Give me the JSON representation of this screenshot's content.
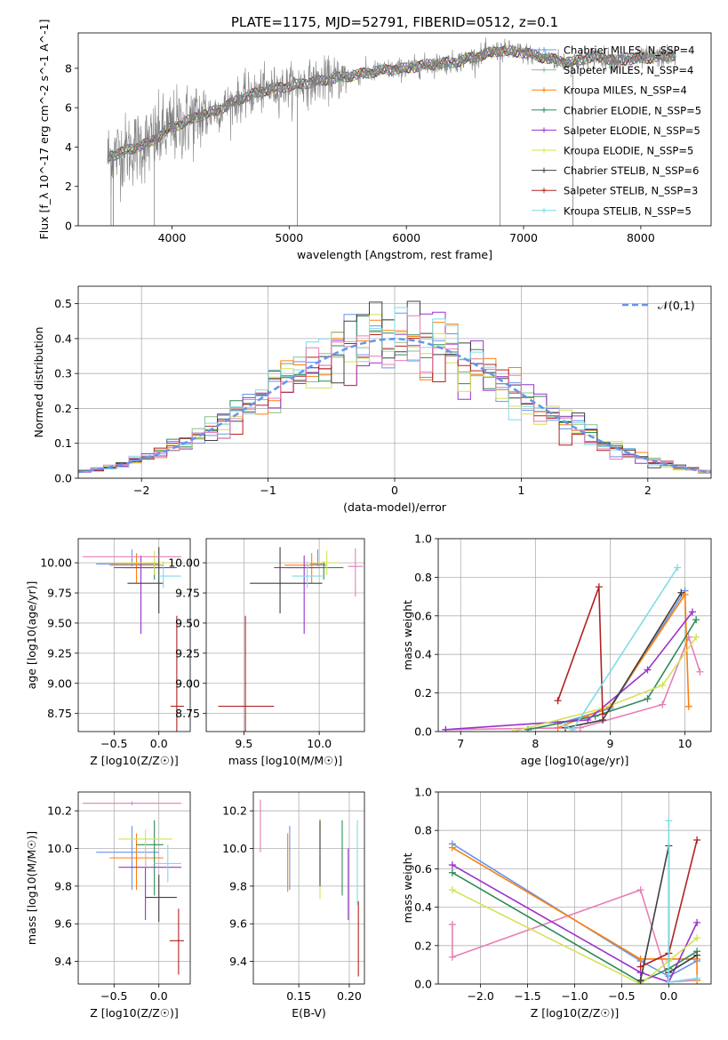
{
  "figure_title": "PLATE=1175, MJD=52791, FIBERID=0512, z=0.1",
  "colors": {
    "Chabrier MILES": "#6495ed",
    "Salpeter MILES": "#8fbc8f",
    "Kroupa MILES": "#ff7f0e",
    "Chabrier ELODIE": "#2e8b57",
    "Salpeter ELODIE": "#9932cc",
    "Kroupa ELODIE": "#d4e157",
    "Chabrier STELIB": "#404040",
    "Salpeter STELIB": "#b22222",
    "Kroupa STELIB": "#7fdbe6",
    "pink": "#e67fb5",
    "spectrum": "#808080",
    "normal": "#6495ed"
  },
  "chart_data": [
    {
      "id": "spectrum",
      "type": "line",
      "title": "PLATE=1175, MJD=52791, FIBERID=0512, z=0.1",
      "xlabel": "wavelength [Angstrom, rest frame]",
      "ylabel": "Flux [f_λ 10^-17 erg cm^-2 s^-1 A^-1]",
      "xlim": [
        3200,
        8600
      ],
      "ylim": [
        0,
        9.8
      ],
      "xticks": [
        4000,
        5000,
        6000,
        7000,
        8000
      ],
      "yticks": [
        0,
        2,
        4,
        6,
        8
      ],
      "grid": false,
      "legend_position": "upper right",
      "legend": [
        {
          "label": "Chabrier MILES, N_SSP=4",
          "color": "#6495ed"
        },
        {
          "label": "Salpeter MILES, N_SSP=4",
          "color": "#8fbc8f"
        },
        {
          "label": "Kroupa MILES, N_SSP=4",
          "color": "#ff7f0e"
        },
        {
          "label": "Chabrier ELODIE, N_SSP=5",
          "color": "#2e8b57"
        },
        {
          "label": "Salpeter ELODIE, N_SSP=5",
          "color": "#9932cc"
        },
        {
          "label": "Kroupa ELODIE, N_SSP=5",
          "color": "#d4e157"
        },
        {
          "label": "Chabrier STELIB, N_SSP=6",
          "color": "#404040"
        },
        {
          "label": "Salpeter STELIB, N_SSP=3",
          "color": "#b22222"
        },
        {
          "label": "Kroupa STELIB, N_SSP=5",
          "color": "#7fdbe6"
        }
      ],
      "continuum": [
        [
          3450,
          3.5
        ],
        [
          3600,
          3.8
        ],
        [
          3800,
          4.2
        ],
        [
          4000,
          5.0
        ],
        [
          4200,
          5.5
        ],
        [
          4400,
          5.9
        ],
        [
          4600,
          6.5
        ],
        [
          4800,
          6.9
        ],
        [
          5000,
          7.1
        ],
        [
          5200,
          7.3
        ],
        [
          5400,
          7.5
        ],
        [
          5600,
          7.7
        ],
        [
          5800,
          7.9
        ],
        [
          6000,
          8.0
        ],
        [
          6200,
          8.2
        ],
        [
          6400,
          8.3
        ],
        [
          6600,
          8.6
        ],
        [
          6800,
          8.9
        ],
        [
          7000,
          8.8
        ],
        [
          7200,
          8.5
        ],
        [
          7400,
          8.3
        ],
        [
          7600,
          8.6
        ],
        [
          7800,
          8.4
        ],
        [
          8000,
          8.5
        ],
        [
          8200,
          8.6
        ],
        [
          8300,
          8.7
        ]
      ],
      "spikes": [
        3480,
        3500,
        3850,
        5070,
        6800,
        7420
      ]
    },
    {
      "id": "residuals",
      "type": "bar",
      "xlabel": "(data-model)/error",
      "ylabel": "Normed distribution",
      "xlim": [
        -2.5,
        2.5
      ],
      "ylim": [
        0,
        0.55
      ],
      "xticks": [
        -2,
        -1,
        0,
        1,
        2
      ],
      "yticks": [
        0.0,
        0.1,
        0.2,
        0.3,
        0.4,
        0.5
      ],
      "grid": true,
      "bin_width": 0.1,
      "legend": [
        {
          "label": "𝒩(0,1)",
          "color": "#6495ed"
        }
      ],
      "legend_position": "upper right"
    },
    {
      "id": "age-vs-Z",
      "type": "scatter",
      "xlabel": "Z [log10(Z/Z☉)]",
      "ylabel": "age  [log10(age/yr)]",
      "xlim": [
        -0.9,
        0.35
      ],
      "ylim": [
        8.6,
        10.2
      ],
      "xticks": [
        -0.5,
        0.0
      ],
      "yticks": [
        8.75,
        9.0,
        9.25,
        9.5,
        9.75,
        10.0
      ],
      "grid": true,
      "points": [
        {
          "color": "#6495ed",
          "x": -0.3,
          "xerr": [
            0.4,
            0.3
          ],
          "y": 9.99,
          "yerr": [
            0.02,
            0.12
          ]
        },
        {
          "color": "#ff7f0e",
          "x": -0.25,
          "xerr": [
            0.3,
            0.3
          ],
          "y": 9.98,
          "yerr": [
            0.15,
            0.1
          ]
        },
        {
          "color": "#2e8b57",
          "x": -0.05,
          "xerr": [
            0.35,
            0.1
          ],
          "y": 9.96,
          "yerr": [
            0.1,
            0.05
          ]
        },
        {
          "color": "#9932cc",
          "x": -0.2,
          "xerr": [
            0.3,
            0.4
          ],
          "y": 9.96,
          "yerr": [
            0.55,
            0.1
          ]
        },
        {
          "color": "#d4e157",
          "x": -0.05,
          "xerr": [
            0.4,
            0.2
          ],
          "y": 10.0,
          "yerr": [
            0.1,
            0.1
          ]
        },
        {
          "color": "#404040",
          "x": 0.0,
          "xerr": [
            0.35,
            0.05
          ],
          "y": 9.83,
          "yerr": [
            0.25,
            0.3
          ]
        },
        {
          "color": "#b22222",
          "x": 0.2,
          "xerr": [
            0.07,
            0.08
          ],
          "y": 8.81,
          "yerr": [
            0.22,
            0.75
          ]
        },
        {
          "color": "#7fdbe6",
          "x": 0.05,
          "xerr": [
            0.05,
            0.2
          ],
          "y": 9.89,
          "yerr": [
            0.1,
            0.12
          ]
        },
        {
          "color": "#e67fb5",
          "x": -0.3,
          "xerr": [
            0.55,
            0.55
          ],
          "y": 10.05,
          "yerr": [
            0.01,
            0.01
          ]
        }
      ]
    },
    {
      "id": "age-vs-mass",
      "type": "scatter",
      "xlabel": "mass [log10(M/M☉)]",
      "ylabel": "",
      "xlim": [
        9.25,
        10.3
      ],
      "ylim": [
        8.6,
        10.2
      ],
      "xticks": [
        9.5,
        10.0
      ],
      "yticks": [
        8.75,
        9.0,
        9.25,
        9.5,
        9.75,
        10.0
      ],
      "grid": true,
      "points": [
        {
          "color": "#6495ed",
          "x": 9.99,
          "xerr": [
            0.05,
            0.05
          ],
          "y": 9.99,
          "yerr": [
            0.02,
            0.12
          ]
        },
        {
          "color": "#ff7f0e",
          "x": 9.95,
          "xerr": [
            0.18,
            0.1
          ],
          "y": 9.98,
          "yerr": [
            0.15,
            0.1
          ]
        },
        {
          "color": "#2e8b57",
          "x": 10.03,
          "xerr": [
            0.25,
            0.13
          ],
          "y": 9.96,
          "yerr": [
            0.1,
            0.05
          ]
        },
        {
          "color": "#9932cc",
          "x": 9.9,
          "xerr": [
            0.2,
            0.1
          ],
          "y": 9.96,
          "yerr": [
            0.55,
            0.1
          ]
        },
        {
          "color": "#d4e157",
          "x": 10.05,
          "xerr": [
            0.1,
            0.08
          ],
          "y": 10.0,
          "yerr": [
            0.1,
            0.1
          ]
        },
        {
          "color": "#404040",
          "x": 9.74,
          "xerr": [
            0.2,
            0.28
          ],
          "y": 9.83,
          "yerr": [
            0.25,
            0.3
          ]
        },
        {
          "color": "#b22222",
          "x": 9.51,
          "xerr": [
            0.18,
            0.19
          ],
          "y": 8.81,
          "yerr": [
            0.22,
            0.75
          ]
        },
        {
          "color": "#7fdbe6",
          "x": 9.92,
          "xerr": [
            0.1,
            0.1
          ],
          "y": 9.89,
          "yerr": [
            0.1,
            0.12
          ]
        },
        {
          "color": "#e67fb5",
          "x": 10.24,
          "xerr": [
            0.05,
            0.05
          ],
          "y": 9.97,
          "yerr": [
            0.25,
            0.15
          ]
        }
      ]
    },
    {
      "id": "weight-vs-age",
      "type": "line",
      "xlabel": "age  [log10(age/yr)]",
      "ylabel": "mass weight",
      "xlim": [
        6.7,
        10.35
      ],
      "ylim": [
        0,
        1.0
      ],
      "xticks": [
        7,
        8,
        9,
        10
      ],
      "yticks": [
        0.0,
        0.2,
        0.4,
        0.6,
        0.8,
        1.0
      ],
      "grid": true,
      "series": [
        {
          "color": "#e67fb5",
          "x": [
            6.8,
            8.6,
            9.7,
            10.05,
            10.2
          ],
          "y": [
            0.01,
            0.02,
            0.14,
            0.49,
            0.31
          ]
        },
        {
          "color": "#6495ed",
          "x": [
            8.3,
            9.0,
            10.0
          ],
          "y": [
            0.04,
            0.12,
            0.73
          ]
        },
        {
          "color": "#ff7f0e",
          "x": [
            8.3,
            9.0,
            10.0,
            10.05
          ],
          "y": [
            0.02,
            0.13,
            0.71,
            0.13
          ]
        },
        {
          "color": "#2e8b57",
          "x": [
            7.9,
            8.8,
            9.5,
            10.15
          ],
          "y": [
            0.01,
            0.08,
            0.17,
            0.58
          ]
        },
        {
          "color": "#9932cc",
          "x": [
            6.8,
            8.7,
            9.5,
            10.1
          ],
          "y": [
            0.01,
            0.06,
            0.32,
            0.62
          ]
        },
        {
          "color": "#d4e157",
          "x": [
            7.7,
            8.9,
            9.7,
            10.15
          ],
          "y": [
            0.0,
            0.12,
            0.24,
            0.49
          ]
        },
        {
          "color": "#404040",
          "x": [
            8.4,
            8.9,
            9.95
          ],
          "y": [
            0.02,
            0.06,
            0.72
          ]
        },
        {
          "color": "#b22222",
          "x": [
            8.3,
            8.85,
            8.9
          ],
          "y": [
            0.16,
            0.75,
            0.09
          ]
        },
        {
          "color": "#7fdbe6",
          "x": [
            8.4,
            8.5,
            9.9
          ],
          "y": [
            0.03,
            0.01,
            0.85
          ]
        }
      ]
    },
    {
      "id": "mass-vs-Z",
      "type": "scatter",
      "xlabel": "Z [log10(Z/Z☉)]",
      "ylabel": "mass [log10(M/M☉)]",
      "xlim": [
        -0.9,
        0.35
      ],
      "ylim": [
        9.28,
        10.3
      ],
      "xticks": [
        -0.5,
        0.0
      ],
      "yticks": [
        9.4,
        9.6,
        9.8,
        10.0,
        10.2
      ],
      "grid": true,
      "points": [
        {
          "color": "#6495ed",
          "x": -0.3,
          "xerr": [
            0.4,
            0.3
          ],
          "y": 9.98,
          "yerr": [
            0.2,
            0.14
          ]
        },
        {
          "color": "#ff7f0e",
          "x": -0.25,
          "xerr": [
            0.3,
            0.3
          ],
          "y": 9.95,
          "yerr": [
            0.17,
            0.13
          ]
        },
        {
          "color": "#2e8b57",
          "x": -0.05,
          "xerr": [
            0.2,
            0.1
          ],
          "y": 10.02,
          "yerr": [
            0.27,
            0.13
          ]
        },
        {
          "color": "#9932cc",
          "x": -0.15,
          "xerr": [
            0.3,
            0.4
          ],
          "y": 9.9,
          "yerr": [
            0.28,
            0.1
          ]
        },
        {
          "color": "#d4e157",
          "x": -0.15,
          "xerr": [
            0.3,
            0.3
          ],
          "y": 10.05,
          "yerr": [
            0.15,
            0.05
          ]
        },
        {
          "color": "#404040",
          "x": 0.0,
          "xerr": [
            0.15,
            0.2
          ],
          "y": 9.74,
          "yerr": [
            0.13,
            0.12
          ]
        },
        {
          "color": "#b22222",
          "x": 0.22,
          "xerr": [
            0.1,
            0.06
          ],
          "y": 9.51,
          "yerr": [
            0.18,
            0.17
          ]
        },
        {
          "color": "#7fdbe6",
          "x": 0.1,
          "xerr": [
            0.15,
            0.15
          ],
          "y": 9.92,
          "yerr": [
            0.1,
            0.1
          ]
        },
        {
          "color": "#e67fb5",
          "x": -0.3,
          "xerr": [
            0.55,
            0.55
          ],
          "y": 10.24,
          "yerr": [
            0.01,
            0.01
          ]
        }
      ]
    },
    {
      "id": "mass-vs-EBV",
      "type": "scatter",
      "xlabel": "E(B-V)",
      "ylabel": "",
      "xlim": [
        0.105,
        0.215
      ],
      "ylim": [
        9.28,
        10.3
      ],
      "xticks": [
        0.15,
        0.2
      ],
      "yticks": [
        9.4,
        9.6,
        9.8,
        10.0,
        10.2
      ],
      "grid": true,
      "points": [
        {
          "color": "#6495ed",
          "x": 0.141,
          "y": 9.98,
          "yerr": [
            0.2,
            0.14
          ]
        },
        {
          "color": "#ff7f0e",
          "x": 0.139,
          "y": 9.95,
          "yerr": [
            0.18,
            0.13
          ]
        },
        {
          "color": "#2e8b57",
          "x": 0.193,
          "y": 10.02,
          "yerr": [
            0.27,
            0.13
          ]
        },
        {
          "color": "#9932cc",
          "x": 0.199,
          "y": 9.9,
          "yerr": [
            0.28,
            0.1
          ]
        },
        {
          "color": "#d4e157",
          "x": 0.171,
          "y": 10.0,
          "yerr": [
            0.27,
            0.16
          ]
        },
        {
          "color": "#404040",
          "x": 0.171,
          "y": 10.0,
          "yerr": [
            0.2,
            0.15
          ]
        },
        {
          "color": "#b22222",
          "x": 0.209,
          "y": 9.52,
          "yerr": [
            0.2,
            0.2
          ]
        },
        {
          "color": "#7fdbe6",
          "x": 0.208,
          "y": 9.9,
          "yerr": [
            0.2,
            0.25
          ]
        },
        {
          "color": "#e67fb5",
          "x": 0.112,
          "y": 10.12,
          "yerr": [
            0.14,
            0.14
          ]
        }
      ]
    },
    {
      "id": "weight-vs-Z",
      "type": "line",
      "xlabel": "Z [log10(Z/Z☉)]",
      "ylabel": "mass weight",
      "xlim": [
        -2.45,
        0.45
      ],
      "ylim": [
        0,
        1.0
      ],
      "xticks": [
        -2.0,
        -1.5,
        -1.0,
        -0.5,
        0.0
      ],
      "yticks": [
        0.0,
        0.2,
        0.4,
        0.6,
        0.8,
        1.0
      ],
      "grid": true,
      "series": [
        {
          "color": "#e67fb5",
          "x": [
            -2.3,
            -2.3,
            -0.3,
            0.0,
            0.3
          ],
          "y": [
            0.31,
            0.14,
            0.49,
            0.01,
            0.02
          ]
        },
        {
          "color": "#6495ed",
          "x": [
            -2.3,
            -0.3,
            0.0,
            0.3
          ],
          "y": [
            0.73,
            0.12,
            0.04,
            0.12
          ]
        },
        {
          "color": "#ff7f0e",
          "x": [
            -2.3,
            -0.3,
            0.3,
            0.3
          ],
          "y": [
            0.71,
            0.13,
            0.13,
            0.02
          ]
        },
        {
          "color": "#2e8b57",
          "x": [
            -2.3,
            -0.3,
            0.0,
            0.3
          ],
          "y": [
            0.58,
            0.01,
            0.08,
            0.17
          ]
        },
        {
          "color": "#9932cc",
          "x": [
            -2.3,
            -0.3,
            0.0,
            0.3
          ],
          "y": [
            0.62,
            0.06,
            0.01,
            0.32
          ]
        },
        {
          "color": "#d4e157",
          "x": [
            -2.3,
            -0.3,
            0.0,
            0.3
          ],
          "y": [
            0.49,
            0.0,
            0.12,
            0.24
          ]
        },
        {
          "color": "#404040",
          "x": [
            -0.3,
            0.0,
            0.0,
            0.3
          ],
          "y": [
            0.02,
            0.72,
            0.06,
            0.15
          ]
        },
        {
          "color": "#b22222",
          "x": [
            -0.3,
            0.0,
            0.3
          ],
          "y": [
            0.09,
            0.16,
            0.75
          ]
        },
        {
          "color": "#7fdbe6",
          "x": [
            0.0,
            0.0,
            0.3
          ],
          "y": [
            0.85,
            0.01,
            0.03
          ]
        }
      ]
    }
  ]
}
